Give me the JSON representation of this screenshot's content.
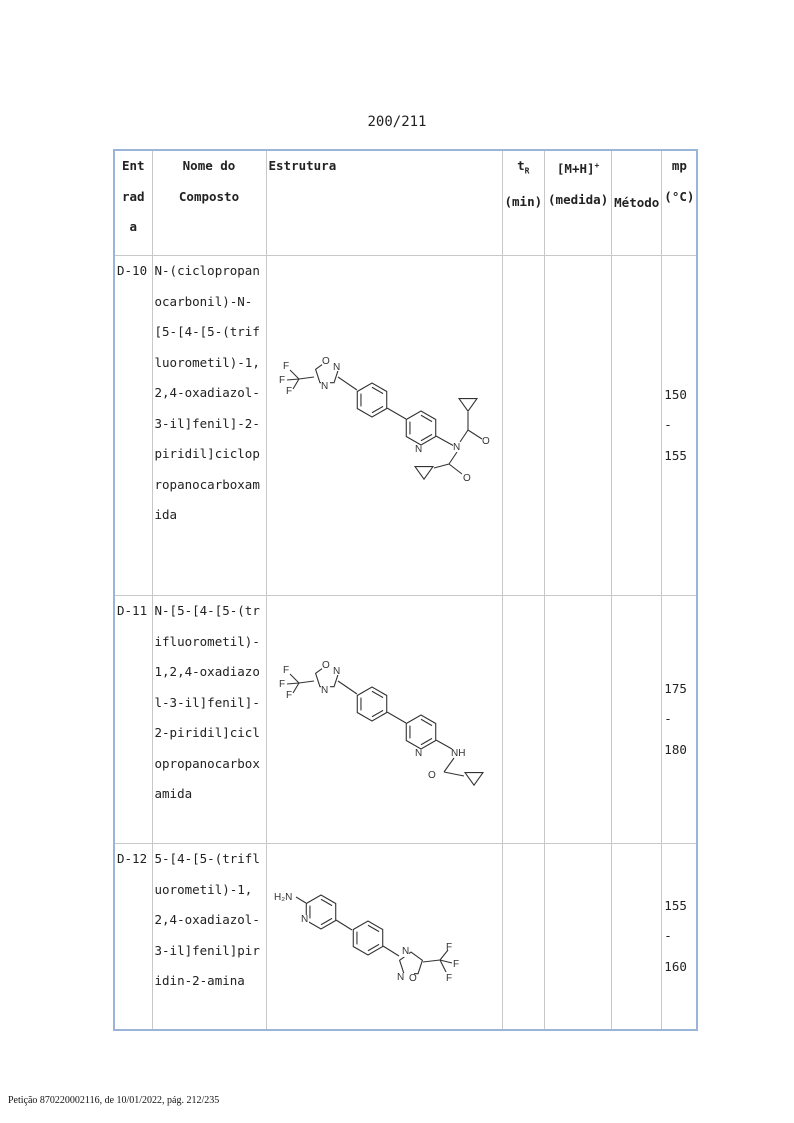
{
  "page_number": "200/211",
  "table": {
    "headers": {
      "entrada": "Ent rad a",
      "nome": "Nome do Composto",
      "estrutura": "Estrutura",
      "tr_main": "t",
      "tr_sub": "R",
      "tr_unit": "(min)",
      "mh_main": "[M+H]",
      "mh_sup": "+",
      "mh_unit": "(medida)",
      "metodo": "Método",
      "mp": "mp (°C)"
    },
    "rows": [
      {
        "entrada": "D-10",
        "nome": "N-(ciclopropanocarbonil)-N-[5-[4-[5-(trifluorometil)-1,2,4-oxadiazol-3-il]fenil]-2-piridil]ciclopropanocarboxamida",
        "tr": "",
        "mh": "",
        "metodo": "",
        "mp": "150 - 155",
        "atoms": {
          "o1": "O",
          "n1": "N",
          "n2": "N",
          "f1": "F",
          "f2": "F",
          "f3": "F",
          "npy": "N",
          "namide": "N",
          "oa": "O",
          "ob": "O"
        }
      },
      {
        "entrada": "D-11",
        "nome": "N-[5-[4-[5-(trifluorometil)-1,2,4-oxadiazol-3-il]fenil]-2-piridil]ciclopropanocarboxamida",
        "tr": "",
        "mh": "",
        "metodo": "",
        "mp": "175 - 180",
        "atoms": {
          "o1": "O",
          "n1": "N",
          "n2": "N",
          "f1": "F",
          "f2": "F",
          "f3": "F",
          "npy": "N",
          "nh": "NH",
          "oa": "O"
        }
      },
      {
        "entrada": "D-12",
        "nome": "5-[4-[5-(trifluorometil)-1,2,4-oxadiazol-3-il]fenil]piridin-2-amina",
        "tr": "",
        "mh": "",
        "metodo": "",
        "mp": "155 - 160",
        "atoms": {
          "h2n": "H₂N",
          "npy": "N",
          "n1": "N",
          "n2": "N",
          "o1": "O",
          "f1": "F",
          "f2": "F",
          "f3": "F"
        }
      }
    ]
  },
  "footer": "Petição 870220002116, de 10/01/2022, pág. 212/235"
}
